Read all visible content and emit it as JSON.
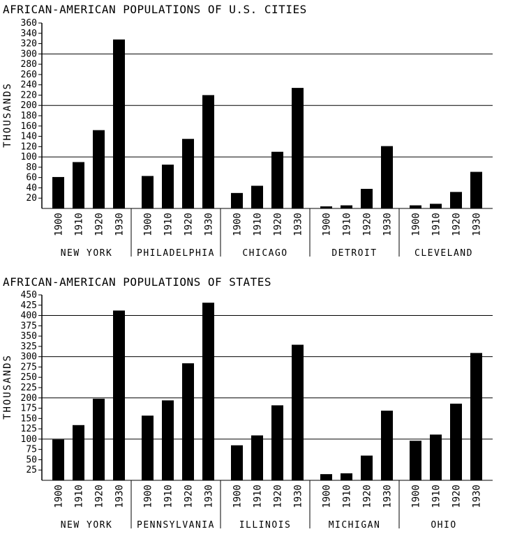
{
  "chart_data": [
    {
      "type": "bar",
      "title": "AFRICAN-AMERICAN POPULATIONS OF U.S. CITIES",
      "ylabel": "THOUSANDS",
      "xlabel": "",
      "ylim": [
        0,
        360
      ],
      "yticks": [
        20,
        40,
        60,
        80,
        100,
        120,
        140,
        160,
        180,
        200,
        220,
        240,
        260,
        280,
        300,
        320,
        340,
        360
      ],
      "gridlines": [
        100,
        200,
        300
      ],
      "bar_color": "#000000",
      "groups": [
        {
          "name": "NEW YORK",
          "categories": [
            "1900",
            "1910",
            "1920",
            "1930"
          ],
          "values": [
            61,
            90,
            152,
            328
          ]
        },
        {
          "name": "PHILADELPHIA",
          "categories": [
            "1900",
            "1910",
            "1920",
            "1930"
          ],
          "values": [
            63,
            85,
            135,
            220
          ]
        },
        {
          "name": "CHICAGO",
          "categories": [
            "1900",
            "1910",
            "1920",
            "1930"
          ],
          "values": [
            30,
            44,
            110,
            234
          ]
        },
        {
          "name": "DETROIT",
          "categories": [
            "1900",
            "1910",
            "1920",
            "1930"
          ],
          "values": [
            4,
            6,
            38,
            121
          ]
        },
        {
          "name": "CLEVELAND",
          "categories": [
            "1900",
            "1910",
            "1920",
            "1930"
          ],
          "values": [
            6,
            9,
            32,
            71
          ]
        }
      ]
    },
    {
      "type": "bar",
      "title": "AFRICAN-AMERICAN POPULATIONS OF STATES",
      "ylabel": "THOUSANDS",
      "xlabel": "",
      "ylim": [
        0,
        450
      ],
      "yticks": [
        25,
        50,
        75,
        100,
        125,
        150,
        175,
        200,
        225,
        250,
        275,
        300,
        325,
        350,
        375,
        400,
        425,
        450
      ],
      "gridlines": [
        100,
        200,
        300,
        400
      ],
      "bar_color": "#000000",
      "groups": [
        {
          "name": "NEW YORK",
          "categories": [
            "1900",
            "1910",
            "1920",
            "1930"
          ],
          "values": [
            99,
            134,
            198,
            412
          ]
        },
        {
          "name": "PENNSYLVANIA",
          "categories": [
            "1900",
            "1910",
            "1920",
            "1930"
          ],
          "values": [
            157,
            194,
            284,
            431
          ]
        },
        {
          "name": "ILLINOIS",
          "categories": [
            "1900",
            "1910",
            "1920",
            "1930"
          ],
          "values": [
            85,
            109,
            182,
            329
          ]
        },
        {
          "name": "MICHIGAN",
          "categories": [
            "1900",
            "1910",
            "1920",
            "1930"
          ],
          "values": [
            15,
            17,
            60,
            169
          ]
        },
        {
          "name": "OHIO",
          "categories": [
            "1900",
            "1910",
            "1920",
            "1930"
          ],
          "values": [
            96,
            111,
            186,
            309
          ]
        }
      ]
    }
  ]
}
